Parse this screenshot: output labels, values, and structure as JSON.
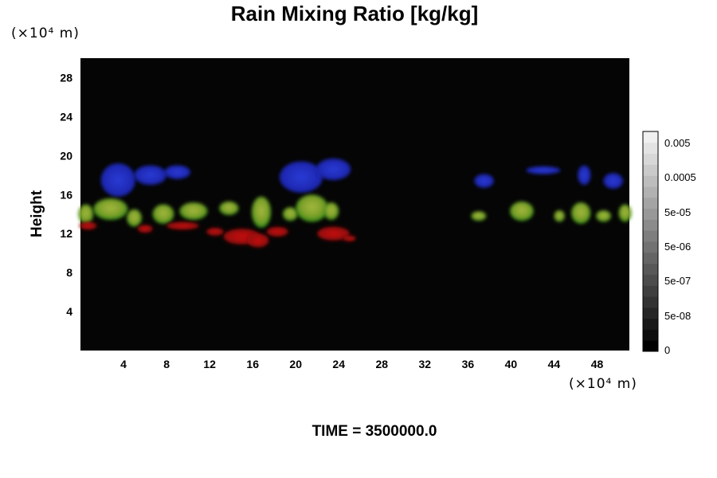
{
  "chart_data": {
    "type": "heatmap",
    "title": "Rain Mixing Ratio [kg/kg]",
    "ylabel": "Height",
    "x_unit": "(×10⁴ m)",
    "y_unit": "(×10⁴ m)",
    "xlim": [
      0,
      51
    ],
    "ylim": [
      0,
      30
    ],
    "x_ticks": [
      "4",
      "8",
      "12",
      "16",
      "20",
      "24",
      "28",
      "32",
      "36",
      "40",
      "44",
      "48"
    ],
    "y_ticks": [
      "4",
      "8",
      "12",
      "16",
      "20",
      "24",
      "28"
    ],
    "background": "#050505",
    "colorbar": {
      "ticks": [
        "0.005",
        "0.0005",
        "5e-05",
        "5e-06",
        "5e-07",
        "5e-08",
        "0"
      ],
      "levels": 20
    },
    "footer": "TIME = 3500000.0",
    "blobs": [
      {
        "layer": "blue",
        "x": 3.5,
        "y": 17.5,
        "rx": 1.6,
        "ry": 1.7
      },
      {
        "layer": "blue",
        "x": 6.5,
        "y": 18.0,
        "rx": 1.5,
        "ry": 1.0
      },
      {
        "layer": "blue",
        "x": 9.0,
        "y": 18.3,
        "rx": 1.2,
        "ry": 0.7
      },
      {
        "layer": "blue",
        "x": 20.5,
        "y": 17.8,
        "rx": 2.0,
        "ry": 1.6
      },
      {
        "layer": "blue",
        "x": 23.5,
        "y": 18.6,
        "rx": 1.6,
        "ry": 1.1
      },
      {
        "layer": "blue",
        "x": 37.5,
        "y": 17.4,
        "rx": 0.9,
        "ry": 0.7
      },
      {
        "layer": "blue",
        "x": 43.0,
        "y": 18.5,
        "rx": 1.6,
        "ry": 0.4
      },
      {
        "layer": "blue",
        "x": 46.8,
        "y": 18.0,
        "rx": 0.6,
        "ry": 1.0
      },
      {
        "layer": "blue",
        "x": 49.5,
        "y": 17.4,
        "rx": 0.9,
        "ry": 0.8
      },
      {
        "layer": "green",
        "x": 0.5,
        "y": 14.0,
        "rx": 0.7,
        "ry": 1.0
      },
      {
        "layer": "green",
        "x": 2.8,
        "y": 14.5,
        "rx": 1.6,
        "ry": 1.1
      },
      {
        "layer": "green",
        "x": 5.0,
        "y": 13.6,
        "rx": 0.7,
        "ry": 0.9
      },
      {
        "layer": "green",
        "x": 7.7,
        "y": 14.0,
        "rx": 1.0,
        "ry": 1.0
      },
      {
        "layer": "green",
        "x": 10.5,
        "y": 14.3,
        "rx": 1.3,
        "ry": 0.9
      },
      {
        "layer": "green",
        "x": 13.8,
        "y": 14.6,
        "rx": 0.9,
        "ry": 0.7
      },
      {
        "layer": "green",
        "x": 16.8,
        "y": 14.2,
        "rx": 0.9,
        "ry": 1.6
      },
      {
        "layer": "green",
        "x": 19.5,
        "y": 14.0,
        "rx": 0.7,
        "ry": 0.7
      },
      {
        "layer": "green",
        "x": 21.5,
        "y": 14.6,
        "rx": 1.5,
        "ry": 1.4
      },
      {
        "layer": "green",
        "x": 23.3,
        "y": 14.3,
        "rx": 0.7,
        "ry": 0.9
      },
      {
        "layer": "green",
        "x": 37.0,
        "y": 13.8,
        "rx": 0.7,
        "ry": 0.5
      },
      {
        "layer": "green",
        "x": 41.0,
        "y": 14.3,
        "rx": 1.1,
        "ry": 1.0
      },
      {
        "layer": "green",
        "x": 44.5,
        "y": 13.8,
        "rx": 0.5,
        "ry": 0.6
      },
      {
        "layer": "green",
        "x": 46.5,
        "y": 14.1,
        "rx": 0.9,
        "ry": 1.1
      },
      {
        "layer": "green",
        "x": 48.6,
        "y": 13.8,
        "rx": 0.7,
        "ry": 0.6
      },
      {
        "layer": "green",
        "x": 50.6,
        "y": 14.1,
        "rx": 0.6,
        "ry": 0.9
      },
      {
        "layer": "red",
        "x": 0.7,
        "y": 12.8,
        "rx": 0.8,
        "ry": 0.4
      },
      {
        "layer": "red",
        "x": 6.0,
        "y": 12.5,
        "rx": 0.7,
        "ry": 0.4
      },
      {
        "layer": "red",
        "x": 9.5,
        "y": 12.8,
        "rx": 1.5,
        "ry": 0.4
      },
      {
        "layer": "red",
        "x": 12.5,
        "y": 12.2,
        "rx": 0.8,
        "ry": 0.4
      },
      {
        "layer": "red",
        "x": 15.0,
        "y": 11.7,
        "rx": 1.7,
        "ry": 0.8
      },
      {
        "layer": "red",
        "x": 16.5,
        "y": 11.3,
        "rx": 1.0,
        "ry": 0.7
      },
      {
        "layer": "red",
        "x": 18.3,
        "y": 12.2,
        "rx": 1.0,
        "ry": 0.5
      },
      {
        "layer": "red",
        "x": 23.5,
        "y": 12.0,
        "rx": 1.5,
        "ry": 0.7
      },
      {
        "layer": "red",
        "x": 25.0,
        "y": 11.5,
        "rx": 0.6,
        "ry": 0.3
      }
    ]
  }
}
